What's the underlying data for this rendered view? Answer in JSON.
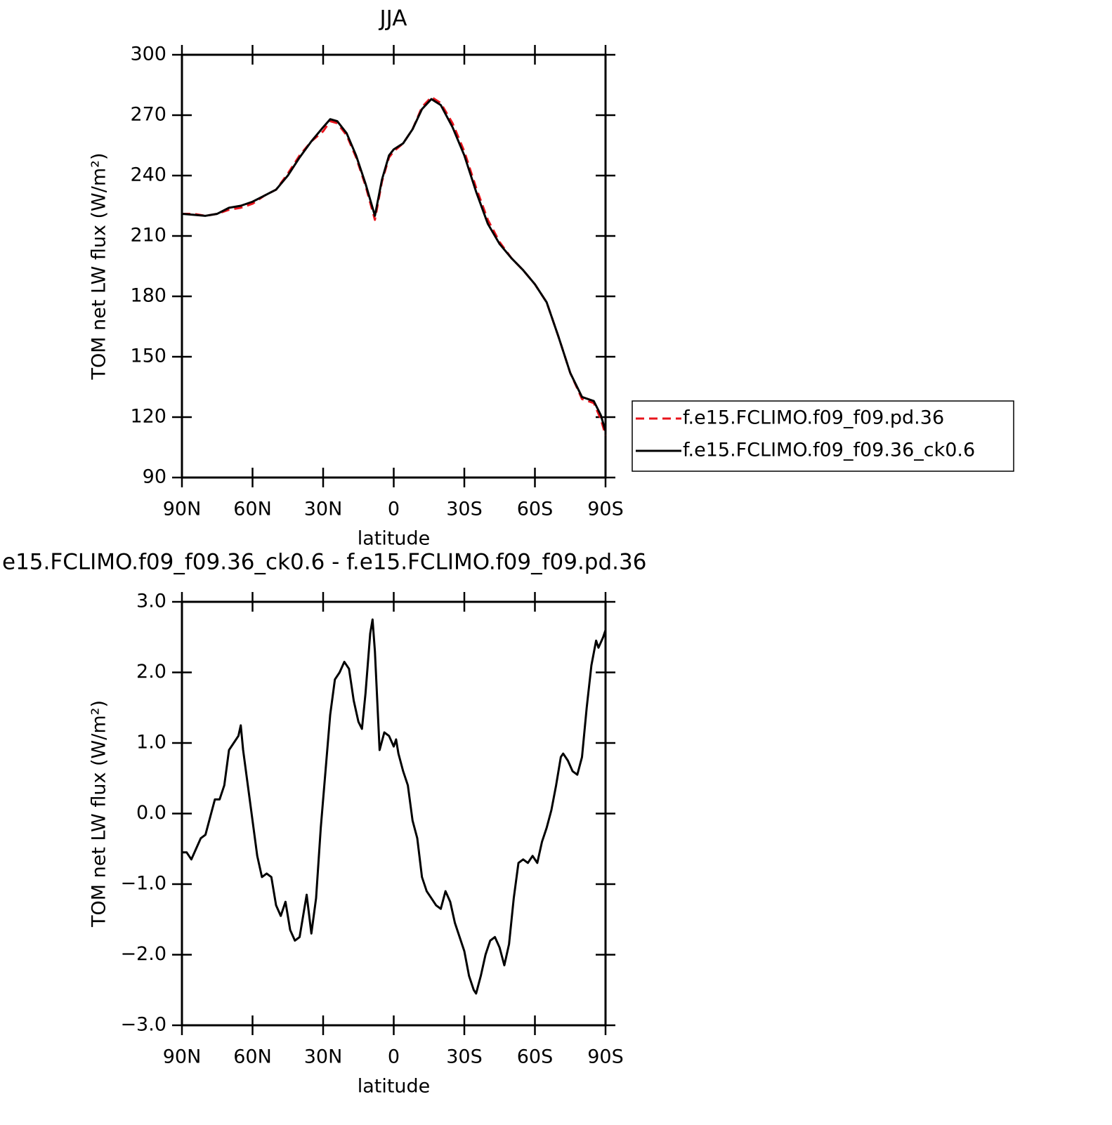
{
  "chart_data": [
    {
      "type": "line",
      "title": "JJA",
      "x_label": "latitude",
      "y_label": "TOM net LW flux (W/m²)",
      "x": [
        90,
        85,
        80,
        75,
        70,
        65,
        60,
        55,
        50,
        45,
        40,
        35,
        30,
        27,
        24,
        20,
        16,
        12,
        8,
        5,
        2,
        0,
        -4,
        -8,
        -12,
        -16,
        -20,
        -25,
        -30,
        -35,
        -40,
        -45,
        -50,
        -55,
        -60,
        -65,
        -70,
        -75,
        -80,
        -85,
        -88,
        -90
      ],
      "xlim": [
        90,
        -90
      ],
      "xticks": [
        {
          "value": 90,
          "label": "90N"
        },
        {
          "value": 60,
          "label": "60N"
        },
        {
          "value": 30,
          "label": "30N"
        },
        0,
        {
          "value": -30,
          "label": "30S"
        },
        {
          "value": -60,
          "label": "60S"
        },
        {
          "value": -90,
          "label": "90S"
        }
      ],
      "ylim": [
        90,
        300
      ],
      "yticks": [
        90,
        120,
        150,
        180,
        210,
        240,
        270,
        300
      ],
      "legend": "right",
      "series": [
        {
          "name": "f.e15.FCLIMO.f09_f09.pd.36",
          "color": "#e8141c",
          "dash": "dashed",
          "values": [
            221,
            221,
            220,
            221,
            223,
            224,
            226,
            230,
            233,
            241,
            250,
            257,
            262,
            267,
            266,
            260,
            249,
            235,
            218,
            237,
            249,
            252,
            256,
            263,
            274,
            279,
            276,
            266,
            252,
            234,
            218,
            207,
            199,
            193,
            186,
            177,
            160,
            142,
            129,
            127,
            119,
            111
          ]
        },
        {
          "name": "f.e15.FCLIMO.f09_f09.36_ck0.6",
          "color": "#000000",
          "dash": "solid",
          "values": [
            221,
            220.5,
            220,
            221,
            224,
            225,
            227,
            230,
            233,
            240,
            249,
            257,
            264,
            268,
            267,
            261,
            250,
            236,
            220,
            238,
            250,
            253,
            256,
            263,
            273,
            278,
            275,
            264,
            250,
            232,
            216,
            206,
            199,
            193,
            186,
            177,
            160,
            142,
            130,
            128,
            121,
            113
          ]
        }
      ]
    },
    {
      "type": "line",
      "title": "e15.FCLIMO.f09_f09.36_ck0.6 - f.e15.FCLIMO.f09_f09.pd.36",
      "x_label": "latitude",
      "y_label": "TOM net LW flux (W/m²)",
      "x": [
        90,
        88,
        86,
        84,
        82,
        80,
        78,
        76,
        74,
        72,
        70,
        68,
        66,
        65,
        64,
        62,
        60,
        58,
        56,
        54,
        52,
        50,
        48,
        46,
        44,
        42,
        40,
        38,
        37,
        35,
        33,
        31,
        29,
        27,
        25,
        23,
        21,
        19,
        17,
        15,
        13.5,
        12,
        10,
        9,
        8,
        6,
        4,
        2,
        0,
        -1,
        -2,
        -4,
        -6,
        -8,
        -10,
        -12,
        -14,
        -16,
        -18,
        -20,
        -22,
        -24,
        -26,
        -28,
        -30,
        -32,
        -34,
        -35,
        -37,
        -39,
        -41,
        -43,
        -45,
        -47,
        -49,
        -51,
        -53,
        -55,
        -57,
        -59,
        -61,
        -63,
        -65,
        -67,
        -69,
        -71,
        -72,
        -74,
        -76,
        -78,
        -80,
        -82,
        -84,
        -86,
        -87,
        -89,
        -90
      ],
      "values": [
        -0.55,
        -0.55,
        -0.65,
        -0.5,
        -0.35,
        -0.3,
        -0.05,
        0.2,
        0.2,
        0.4,
        0.9,
        1.0,
        1.1,
        1.25,
        0.9,
        0.4,
        -0.1,
        -0.6,
        -0.9,
        -0.85,
        -0.9,
        -1.3,
        -1.45,
        -1.25,
        -1.65,
        -1.8,
        -1.75,
        -1.35,
        -1.15,
        -1.7,
        -1.2,
        -0.2,
        0.6,
        1.4,
        1.9,
        2.0,
        2.15,
        2.05,
        1.6,
        1.3,
        1.2,
        1.7,
        2.55,
        2.75,
        2.3,
        0.9,
        1.15,
        1.1,
        0.95,
        1.05,
        0.85,
        0.6,
        0.4,
        -0.1,
        -0.35,
        -0.9,
        -1.1,
        -1.2,
        -1.3,
        -1.35,
        -1.1,
        -1.25,
        -1.55,
        -1.75,
        -1.95,
        -2.3,
        -2.5,
        -2.55,
        -2.3,
        -2.0,
        -1.8,
        -1.75,
        -1.9,
        -2.15,
        -1.85,
        -1.2,
        -0.7,
        -0.65,
        -0.7,
        -0.6,
        -0.7,
        -0.4,
        -0.2,
        0.05,
        0.4,
        0.8,
        0.85,
        0.75,
        0.6,
        0.55,
        0.8,
        1.5,
        2.1,
        2.45,
        2.35,
        2.5,
        2.6
      ],
      "color": "#000000",
      "xlim": [
        90,
        -90
      ],
      "xticks": [
        {
          "value": 90,
          "label": "90N"
        },
        {
          "value": 60,
          "label": "60N"
        },
        {
          "value": 30,
          "label": "30N"
        },
        0,
        {
          "value": -30,
          "label": "30S"
        },
        {
          "value": -60,
          "label": "60S"
        },
        {
          "value": -90,
          "label": "90S"
        }
      ],
      "ylim": [
        -3,
        3
      ],
      "yticks": [
        {
          "value": -3,
          "label": "−3.0"
        },
        {
          "value": -2,
          "label": "−2.0"
        },
        {
          "value": -1,
          "label": "−1.0"
        },
        {
          "value": 0,
          "label": "0.0"
        },
        {
          "value": 1,
          "label": "1.0"
        },
        {
          "value": 2,
          "label": "2.0"
        },
        {
          "value": 3,
          "label": "3.0"
        }
      ]
    }
  ]
}
